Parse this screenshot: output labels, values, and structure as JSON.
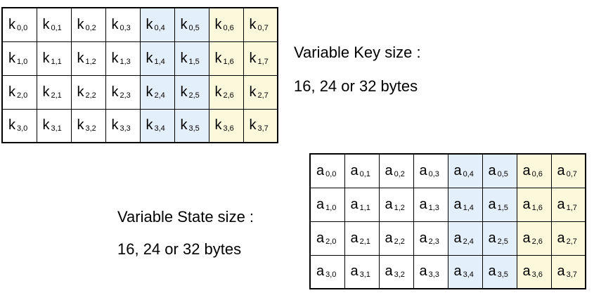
{
  "key": {
    "label": "Variable Key size :",
    "sizes": "16, 24 or 32 bytes",
    "letter": "k"
  },
  "state": {
    "label": "Variable State size :",
    "sizes": "16, 24 or 32 bytes",
    "letter": "a"
  },
  "rows": 4,
  "cols": 8,
  "colors": {
    "white": "#ffffff",
    "blue": "#e3effa",
    "yellow": "#fcf8dc"
  },
  "column_colors": [
    "white",
    "white",
    "white",
    "white",
    "blue",
    "blue",
    "yellow",
    "yellow"
  ]
}
